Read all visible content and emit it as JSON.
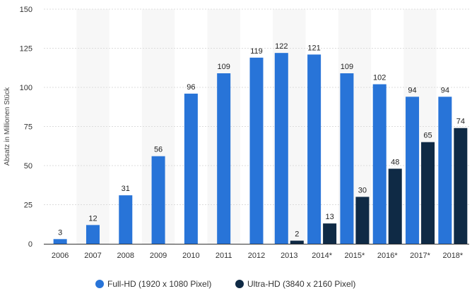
{
  "chart_data": {
    "type": "bar",
    "title": "",
    "xlabel": "",
    "ylabel": "Absatz in Millionen Stück",
    "ylim": [
      0,
      150
    ],
    "yticks": [
      0,
      25,
      50,
      75,
      100,
      125,
      150
    ],
    "grid": true,
    "legend_position": "bottom-center",
    "categories": [
      "2006",
      "2007",
      "2008",
      "2009",
      "2010",
      "2011",
      "2012",
      "2013",
      "2014*",
      "2015*",
      "2016*",
      "2017*",
      "2018*"
    ],
    "series": [
      {
        "name": "Full-HD (1920 x 1080 Pixel)",
        "color": "#2874d8",
        "values": [
          3,
          12,
          31,
          56,
          96,
          109,
          119,
          122,
          121,
          109,
          102,
          94,
          94
        ]
      },
      {
        "name": "Ultra-HD (3840 x 2160 Pixel)",
        "color": "#0f2a45",
        "values": [
          null,
          null,
          null,
          null,
          null,
          null,
          null,
          2,
          13,
          30,
          48,
          65,
          74
        ]
      }
    ]
  }
}
